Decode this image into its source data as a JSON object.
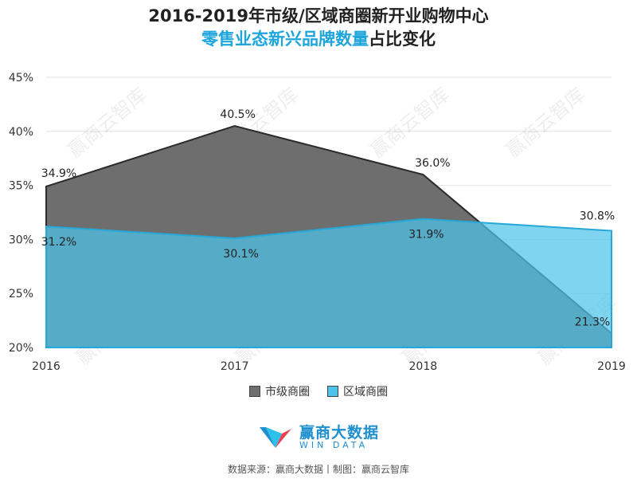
{
  "title": {
    "line1": "2016-2019年市级/区域商圈新开业购物中心",
    "line2_highlight": "零售业态新兴品牌数量",
    "line2_rest": "占比变化"
  },
  "chart_data": {
    "type": "area",
    "categories": [
      "2016",
      "2017",
      "2018",
      "2019"
    ],
    "series": [
      {
        "name": "市级商圈",
        "values": [
          34.9,
          40.5,
          36.0,
          21.3
        ],
        "labels": [
          "34.9%",
          "40.5%",
          "36.0%",
          "21.3%"
        ],
        "color": "#6e6e6e"
      },
      {
        "name": "区域商圈",
        "values": [
          31.2,
          30.1,
          31.9,
          30.8
        ],
        "labels": [
          "31.2%",
          "30.1%",
          "31.9%",
          "30.8%"
        ],
        "color": "#4dc3ea"
      }
    ],
    "y_ticks": [
      "20%",
      "25%",
      "30%",
      "35%",
      "40%",
      "45%"
    ],
    "ylim": [
      20,
      45
    ],
    "grid": true,
    "legend": "bottom"
  },
  "watermark": "赢商云智库",
  "logo": {
    "cn": "赢商大数据",
    "en": "WIN DATA"
  },
  "source": "数据来源：赢商大数据丨制图：赢商云智库"
}
